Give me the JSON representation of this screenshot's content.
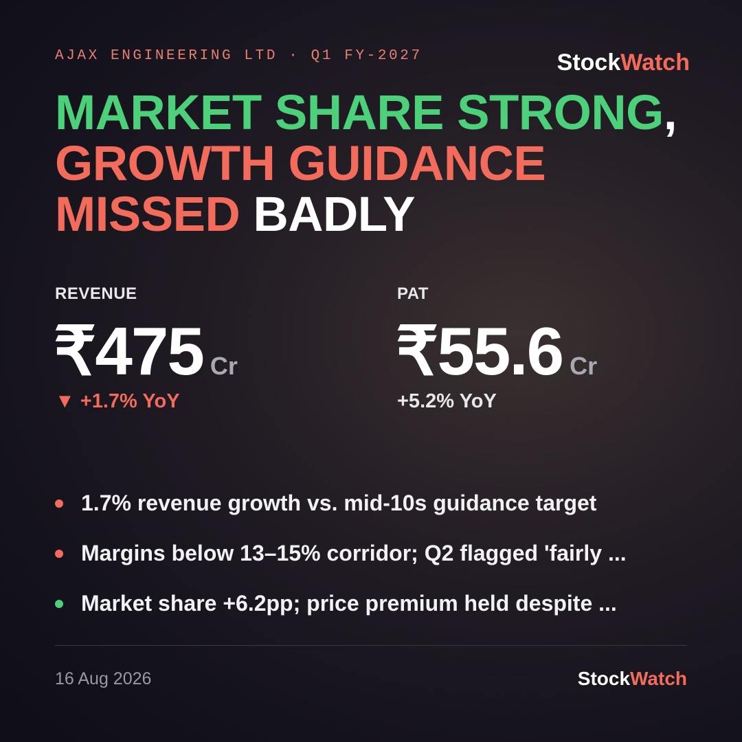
{
  "header": {
    "kicker": "AJAX ENGINEERING LTD · Q1 FY-2027",
    "brand": {
      "first": "Stock",
      "second": "Watch"
    }
  },
  "headline": {
    "part1": "MARKET SHARE STRONG",
    "comma": ",",
    "part2": "GROWTH GUIDANCE",
    "part3": "MISSED",
    "part4": "BADLY"
  },
  "metrics": [
    {
      "label": "REVENUE",
      "value": "₹475",
      "unit": "Cr",
      "icon": "▼",
      "change": "+1.7% YoY"
    },
    {
      "label": "PAT",
      "value": "₹55.6",
      "unit": "Cr",
      "change": "+5.2% YoY"
    }
  ],
  "bullets": [
    {
      "text": "1.7% revenue growth vs. mid-10s guidance target",
      "color": "#f26b5b"
    },
    {
      "text": "Margins below 13–15% corridor; Q2 flagged 'fairly ...",
      "color": "#f26b5b"
    },
    {
      "text": "Market share +6.2pp; price premium held despite ...",
      "color": "#4cd07a"
    }
  ],
  "footer": {
    "date": "16 Aug 2026",
    "brand": {
      "first": "Stock",
      "second": "Watch"
    }
  }
}
